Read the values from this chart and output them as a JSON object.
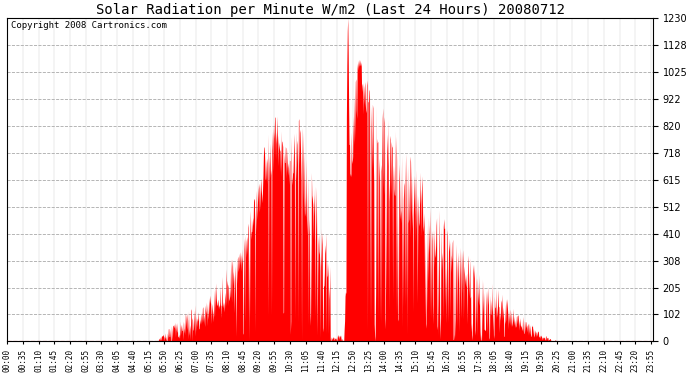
{
  "title": "Solar Radiation per Minute W/m2 (Last 24 Hours) 20080712",
  "copyright_text": "Copyright 2008 Cartronics.com",
  "y_min": 0.0,
  "y_max": 1230.0,
  "y_ticks": [
    0.0,
    102.5,
    205.0,
    307.5,
    410.0,
    512.5,
    615.0,
    717.5,
    820.0,
    922.5,
    1025.0,
    1127.5,
    1230.0
  ],
  "fill_color": "#FF0000",
  "line_color": "#FF0000",
  "dashed_line_color": "#FF0000",
  "grid_color": "#AAAAAA",
  "background_color": "#FFFFFF",
  "title_fontsize": 10,
  "copyright_fontsize": 6.5
}
